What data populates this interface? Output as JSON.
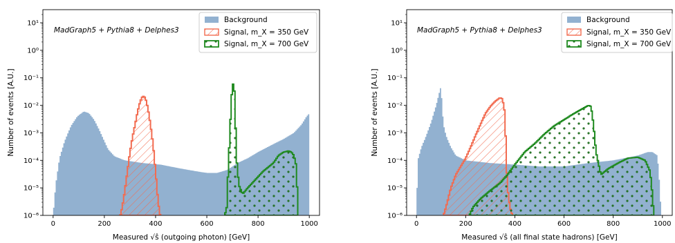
{
  "chart_data": [
    {
      "type": "histogram",
      "xlabel": "Measured √ŝ (outgoing photon) [GeV]",
      "ylabel": "Number of events [A.U.]",
      "annotation": "MadGraph5 + Pythia8 + Delphes3",
      "xlim": [
        -40,
        1040
      ],
      "ylim": [
        1e-06,
        30
      ],
      "yscale": "log",
      "x_ticks": [
        0,
        200,
        400,
        600,
        800,
        1000
      ],
      "y_ticks": [
        "10⁻⁶",
        "10⁻⁵",
        "10⁻⁴",
        "10⁻³",
        "10⁻²",
        "10⁻¹",
        "10⁰",
        "10¹"
      ],
      "legend_position": "top-right",
      "series": [
        {
          "name": "Background",
          "style": "filled",
          "color": "#92b1d0",
          "points": [
            [
              0,
              1e-06
            ],
            [
              10,
              1.3e-05
            ],
            [
              25,
              0.00012
            ],
            [
              45,
              0.0005
            ],
            [
              70,
              0.0018
            ],
            [
              95,
              0.004
            ],
            [
              120,
              0.006
            ],
            [
              140,
              0.0052
            ],
            [
              160,
              0.003
            ],
            [
              180,
              0.0013
            ],
            [
              200,
              0.0005
            ],
            [
              215,
              0.00025
            ],
            [
              240,
              0.00014
            ],
            [
              280,
              0.0001
            ],
            [
              350,
              8e-05
            ],
            [
              420,
              7e-05
            ],
            [
              500,
              5e-05
            ],
            [
              560,
              4e-05
            ],
            [
              600,
              3.5e-05
            ],
            [
              640,
              3.5e-05
            ],
            [
              680,
              4.5e-05
            ],
            [
              720,
              8e-05
            ],
            [
              760,
              0.00012
            ],
            [
              800,
              0.0002
            ],
            [
              850,
              0.00035
            ],
            [
              900,
              0.0006
            ],
            [
              940,
              0.001
            ],
            [
              970,
              0.002
            ],
            [
              990,
              0.004
            ],
            [
              1000,
              0.005
            ]
          ]
        },
        {
          "name": "Signal, m_X = 350 GeV",
          "style": "hatched",
          "color": "#f26b50",
          "points": [
            [
              262,
              1e-06
            ],
            [
              270,
              2e-06
            ],
            [
              280,
              8e-06
            ],
            [
              290,
              4e-05
            ],
            [
              300,
              0.0002
            ],
            [
              310,
              0.0007
            ],
            [
              320,
              0.002
            ],
            [
              330,
              0.006
            ],
            [
              340,
              0.014
            ],
            [
              350,
              0.022
            ],
            [
              360,
              0.019
            ],
            [
              370,
              0.008
            ],
            [
              380,
              0.002
            ],
            [
              390,
              0.0004
            ],
            [
              400,
              4e-05
            ],
            [
              410,
              3e-06
            ],
            [
              418,
              1e-06
            ]
          ]
        },
        {
          "name": "Signal, m_X = 700 GeV",
          "style": "dotted",
          "color": "#1f8a1f",
          "points": [
            [
              670,
              1e-06
            ],
            [
              678,
              2e-06
            ],
            [
              685,
              0.0001
            ],
            [
              690,
              0.0008
            ],
            [
              695,
              0.012
            ],
            [
              700,
              0.05
            ],
            [
              704,
              0.065
            ],
            [
              708,
              0.03
            ],
            [
              712,
              0.002
            ],
            [
              718,
              6e-05
            ],
            [
              726,
              1.2e-05
            ],
            [
              740,
              6e-06
            ],
            [
              760,
              1e-05
            ],
            [
              790,
              2e-05
            ],
            [
              820,
              4e-05
            ],
            [
              860,
              8e-05
            ],
            [
              880,
              0.00015
            ],
            [
              900,
              0.0002
            ],
            [
              920,
              0.00022
            ],
            [
              930,
              0.0002
            ],
            [
              940,
              0.00015
            ],
            [
              950,
              6e-05
            ],
            [
              956,
              1e-06
            ]
          ]
        }
      ]
    },
    {
      "type": "histogram",
      "xlabel": "Measured √ŝ (all final state hadrons) [GeV]",
      "ylabel": "Number of events [A.U.]",
      "annotation": "MadGraph5 + Pythia8 + Delphes3",
      "xlim": [
        -40,
        1040
      ],
      "ylim": [
        1e-06,
        30
      ],
      "yscale": "log",
      "x_ticks": [
        0,
        200,
        400,
        600,
        800,
        1000
      ],
      "y_ticks": [
        "10⁻⁶",
        "10⁻⁵",
        "10⁻⁴",
        "10⁻³",
        "10⁻²",
        "10⁻¹",
        "10⁰",
        "10¹"
      ],
      "legend_position": "top-right",
      "series": [
        {
          "name": "Background",
          "style": "filled",
          "color": "#92b1d0",
          "points": [
            [
              0,
              1e-06
            ],
            [
              5,
              0.0001
            ],
            [
              20,
              0.0003
            ],
            [
              40,
              0.0008
            ],
            [
              60,
              0.0025
            ],
            [
              80,
              0.01
            ],
            [
              95,
              0.035
            ],
            [
              100,
              0.05
            ],
            [
              104,
              0.01
            ],
            [
              110,
              0.002
            ],
            [
              120,
              0.0008
            ],
            [
              140,
              0.0003
            ],
            [
              160,
              0.00015
            ],
            [
              200,
              0.0001
            ],
            [
              300,
              8e-05
            ],
            [
              400,
              7e-05
            ],
            [
              500,
              6e-05
            ],
            [
              600,
              6e-05
            ],
            [
              700,
              8e-05
            ],
            [
              800,
              0.0001
            ],
            [
              900,
              0.00015
            ],
            [
              940,
              0.0002
            ],
            [
              960,
              0.0002
            ],
            [
              980,
              0.00015
            ],
            [
              990,
              1e-05
            ],
            [
              995,
              1e-06
            ]
          ]
        },
        {
          "name": "Signal, m_X = 350 GeV",
          "style": "hatched",
          "color": "#f26b50",
          "points": [
            [
              110,
              1e-06
            ],
            [
              120,
              2e-06
            ],
            [
              140,
              1e-05
            ],
            [
              160,
              3e-05
            ],
            [
              180,
              6e-05
            ],
            [
              200,
              0.00012
            ],
            [
              220,
              0.0003
            ],
            [
              240,
              0.0008
            ],
            [
              260,
              0.002
            ],
            [
              280,
              0.005
            ],
            [
              300,
              0.009
            ],
            [
              320,
              0.014
            ],
            [
              340,
              0.019
            ],
            [
              350,
              0.017
            ],
            [
              360,
              0.005
            ],
            [
              365,
              0.00012
            ],
            [
              370,
              1e-05
            ],
            [
              380,
              2e-06
            ],
            [
              390,
              1e-06
            ]
          ]
        },
        {
          "name": "Signal, m_X = 700 GeV",
          "style": "dotted",
          "color": "#1f8a1f",
          "points": [
            [
              215,
              1e-06
            ],
            [
              230,
              2e-06
            ],
            [
              260,
              4e-06
            ],
            [
              300,
              8e-06
            ],
            [
              340,
              1.5e-05
            ],
            [
              370,
              3e-05
            ],
            [
              400,
              7e-05
            ],
            [
              440,
              0.0002
            ],
            [
              480,
              0.0004
            ],
            [
              520,
              0.0009
            ],
            [
              560,
              0.0018
            ],
            [
              600,
              0.003
            ],
            [
              640,
              0.005
            ],
            [
              680,
              0.008
            ],
            [
              700,
              0.01
            ],
            [
              710,
              0.009
            ],
            [
              720,
              0.002
            ],
            [
              730,
              0.0002
            ],
            [
              750,
              3e-05
            ],
            [
              780,
              5e-05
            ],
            [
              820,
              8e-05
            ],
            [
              860,
              0.00012
            ],
            [
              900,
              0.00013
            ],
            [
              930,
              0.0001
            ],
            [
              950,
              4e-05
            ],
            [
              960,
              5e-06
            ],
            [
              965,
              1e-06
            ]
          ]
        }
      ]
    }
  ]
}
